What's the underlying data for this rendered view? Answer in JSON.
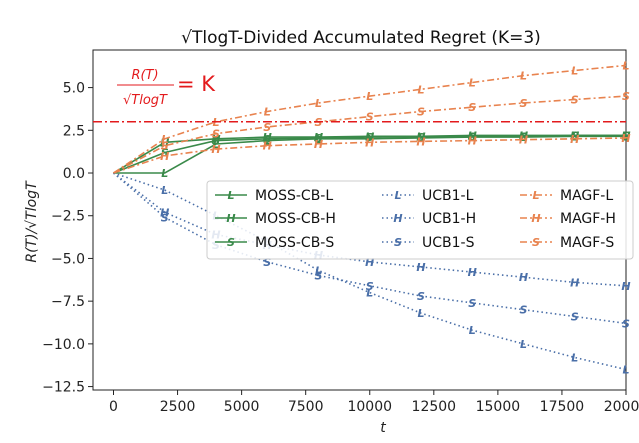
{
  "chart_data": {
    "type": "line",
    "title": "√TlogT-Divided Accumulated Regret (K=3)",
    "xlabel": "t",
    "ylabel": "R(T)/√TlogT",
    "xlim": [
      -800,
      20000
    ],
    "ylim": [
      -12.7,
      7.2
    ],
    "xticks": [
      0,
      2500,
      5000,
      7500,
      10000,
      12500,
      15000,
      17500,
      20000
    ],
    "xtick_labels": [
      "0",
      "2500",
      "5000",
      "7500",
      "10000",
      "12500",
      "15000",
      "17500",
      "20000"
    ],
    "yticks": [
      5.0,
      2.5,
      0.0,
      -2.5,
      -5.0,
      -7.5,
      -10.0,
      -12.5
    ],
    "ytick_labels": [
      "5.0",
      "2.5",
      "0.0",
      "−2.5",
      "−5.0",
      "−7.5",
      "−10.0",
      "−12.5"
    ],
    "hline": {
      "y": 3.0,
      "label": "= K",
      "lhs_num": "R(T)",
      "lhs_den": "√TlogT"
    },
    "legend_location": "center-right",
    "series": [
      {
        "name": "MOSS-CB-L",
        "marker": "L",
        "color": "#3a8a4a",
        "style": "solid",
        "x": [
          0,
          2000,
          4000,
          6000,
          8000,
          10000,
          12000,
          14000,
          16000,
          18000,
          20000
        ],
        "y": [
          0.0,
          0.0,
          1.7,
          1.9,
          2.0,
          2.0,
          2.05,
          2.1,
          2.1,
          2.15,
          2.15
        ]
      },
      {
        "name": "MOSS-CB-H",
        "marker": "H",
        "color": "#3a8a4a",
        "style": "solid",
        "x": [
          0,
          2000,
          4000,
          6000,
          8000,
          10000,
          12000,
          14000,
          16000,
          18000,
          20000
        ],
        "y": [
          0.0,
          1.8,
          2.0,
          2.1,
          2.1,
          2.15,
          2.15,
          2.2,
          2.2,
          2.2,
          2.2
        ]
      },
      {
        "name": "MOSS-CB-S",
        "marker": "S",
        "color": "#3a8a4a",
        "style": "solid",
        "x": [
          0,
          2000,
          4000,
          6000,
          8000,
          10000,
          12000,
          14000,
          16000,
          18000,
          20000
        ],
        "y": [
          0.0,
          1.2,
          1.9,
          2.0,
          2.05,
          2.1,
          2.1,
          2.15,
          2.15,
          2.2,
          2.2
        ]
      },
      {
        "name": "UCB1-L",
        "marker": "L",
        "color": "#4a6fa8",
        "style": "dotted",
        "x": [
          0,
          2000,
          4000,
          6000,
          8000,
          10000,
          12000,
          14000,
          16000,
          18000,
          20000
        ],
        "y": [
          0.0,
          -1.0,
          -2.5,
          -4.0,
          -5.7,
          -7.0,
          -8.2,
          -9.2,
          -10.0,
          -10.8,
          -11.5
        ]
      },
      {
        "name": "UCB1-H",
        "marker": "H",
        "color": "#4a6fa8",
        "style": "dotted",
        "x": [
          0,
          2000,
          4000,
          6000,
          8000,
          10000,
          12000,
          14000,
          16000,
          18000,
          20000
        ],
        "y": [
          0.0,
          -2.3,
          -3.6,
          -4.2,
          -4.8,
          -5.2,
          -5.5,
          -5.8,
          -6.1,
          -6.4,
          -6.6
        ]
      },
      {
        "name": "UCB1-S",
        "marker": "S",
        "color": "#4a6fa8",
        "style": "dotted",
        "x": [
          0,
          2000,
          4000,
          6000,
          8000,
          10000,
          12000,
          14000,
          16000,
          18000,
          20000
        ],
        "y": [
          0.0,
          -2.6,
          -4.2,
          -5.2,
          -6.0,
          -6.6,
          -7.2,
          -7.6,
          -8.0,
          -8.4,
          -8.8
        ]
      },
      {
        "name": "MAGF-L",
        "marker": "L",
        "color": "#e8834f",
        "style": "dashdot",
        "x": [
          0,
          2000,
          4000,
          6000,
          8000,
          10000,
          12000,
          14000,
          16000,
          18000,
          20000
        ],
        "y": [
          0.0,
          2.0,
          3.0,
          3.6,
          4.1,
          4.5,
          4.9,
          5.3,
          5.7,
          6.0,
          6.3
        ]
      },
      {
        "name": "MAGF-H",
        "marker": "H",
        "color": "#e8834f",
        "style": "dashdot",
        "x": [
          0,
          2000,
          4000,
          6000,
          8000,
          10000,
          12000,
          14000,
          16000,
          18000,
          20000
        ],
        "y": [
          0.0,
          1.0,
          1.4,
          1.6,
          1.7,
          1.8,
          1.85,
          1.9,
          1.95,
          2.0,
          2.05
        ]
      },
      {
        "name": "MAGF-S",
        "marker": "S",
        "color": "#e8834f",
        "style": "dashdot",
        "x": [
          0,
          2000,
          4000,
          6000,
          8000,
          10000,
          12000,
          14000,
          16000,
          18000,
          20000
        ],
        "y": [
          0.0,
          1.6,
          2.3,
          2.7,
          3.0,
          3.3,
          3.6,
          3.85,
          4.1,
          4.3,
          4.5
        ]
      }
    ]
  }
}
